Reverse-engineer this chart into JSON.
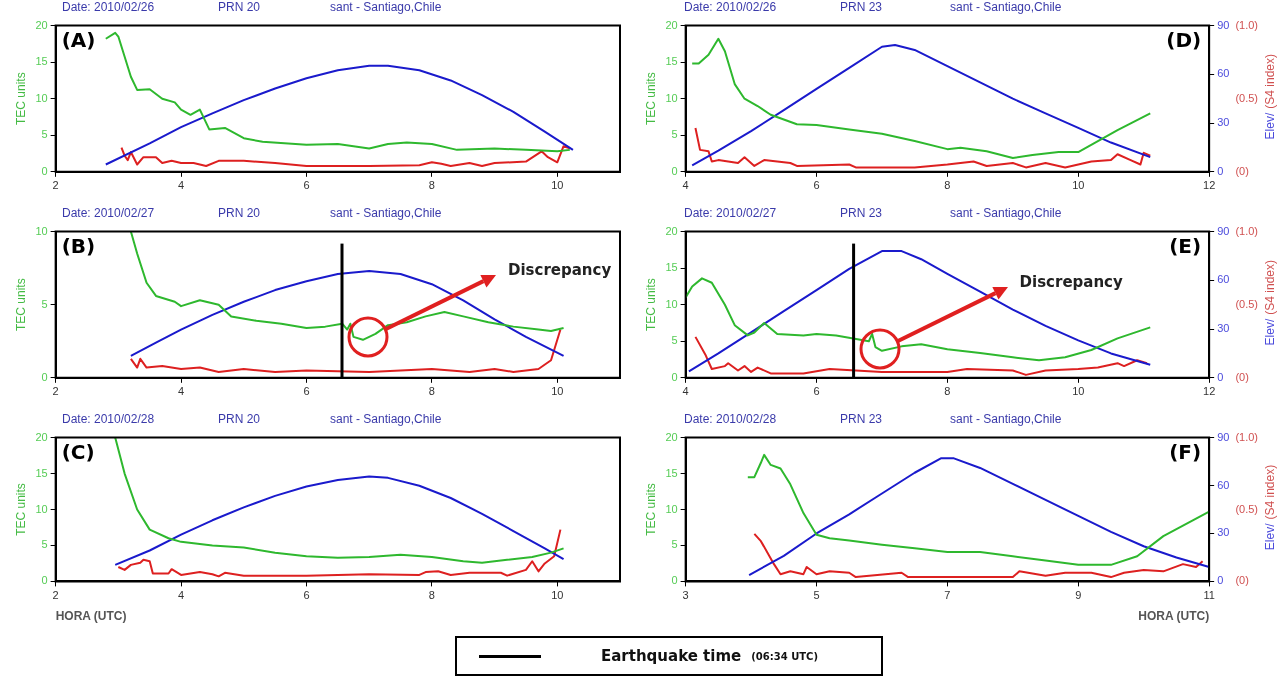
{
  "chart_data": [
    {
      "type": "line",
      "title": "Date: 2010/02/26",
      "subtitle": "PRN 20",
      "annotations": [
        "sant - Santiago,Chile",
        "(A)"
      ],
      "ylabel": "TEC units",
      "xlim": [
        2,
        11
      ],
      "xticks": [
        2,
        4,
        6,
        8,
        10
      ],
      "ylim": [
        0,
        20
      ],
      "yticks": [
        0,
        5,
        10,
        15,
        20
      ],
      "series": [
        {
          "color": "#2eb82e",
          "x": [
            2.8,
            2.95,
            3.0,
            3.2,
            3.3,
            3.5,
            3.7,
            3.9,
            4.0,
            4.15,
            4.3,
            4.45,
            4.7,
            5.0,
            5.3,
            6.0,
            6.5,
            7.0,
            7.3,
            7.6,
            8.0,
            8.4,
            9.0,
            9.5,
            10.0,
            10.2
          ],
          "values": [
            18.2,
            19,
            18.5,
            13,
            11.2,
            11.3,
            10,
            9.5,
            8.5,
            7.8,
            8.5,
            5.8,
            6,
            4.6,
            4.1,
            3.7,
            3.8,
            3.2,
            3.8,
            4,
            3.8,
            3,
            3.2,
            3,
            2.8,
            3
          ]
        },
        {
          "color": "#1a1acc",
          "x": [
            2.8,
            3.5,
            4,
            4.5,
            5,
            5.5,
            6,
            6.5,
            7,
            7.3,
            7.8,
            8.3,
            8.8,
            9.3,
            9.8,
            10.25
          ],
          "values": [
            1,
            3.9,
            6.1,
            8,
            9.8,
            11.4,
            12.8,
            13.9,
            14.5,
            14.5,
            13.9,
            12.5,
            10.5,
            8.2,
            5.5,
            3
          ]
        },
        {
          "color": "#dd2020",
          "x": [
            3.05,
            3.1,
            3.15,
            3.2,
            3.3,
            3.4,
            3.6,
            3.7,
            3.85,
            4.0,
            4.2,
            4.4,
            4.6,
            5.0,
            5.5,
            6.0,
            7.0,
            7.8,
            8.0,
            8.15,
            8.3,
            8.6,
            8.8,
            9.0,
            9.5,
            9.75,
            9.85,
            10.0,
            10.1,
            10.2
          ],
          "values": [
            3.3,
            2.2,
            1.6,
            2.7,
            1.0,
            2,
            2,
            1.2,
            1.5,
            1.2,
            1.2,
            0.8,
            1.5,
            1.5,
            1.2,
            0.8,
            0.8,
            0.9,
            1.3,
            1.1,
            0.8,
            1.2,
            0.8,
            1.2,
            1.4,
            2.8,
            2.0,
            1.3,
            3.5,
            3.2
          ]
        }
      ]
    },
    {
      "type": "line",
      "title": "Date: 2010/02/27",
      "subtitle": "PRN 20",
      "annotations": [
        "sant - Santiago,Chile",
        "(B)",
        "Discrepancy",
        "(06:34 UTC)"
      ],
      "ylabel": "TEC units",
      "xlim": [
        2,
        11
      ],
      "xticks": [
        2,
        4,
        6,
        8,
        10
      ],
      "ylim": [
        0,
        10
      ],
      "yticks": [
        0,
        5,
        10
      ],
      "ref_lines": [
        {
          "axis": "x",
          "value": 6.5667,
          "label": "Earthquake time",
          "color": "#000000"
        }
      ],
      "series": [
        {
          "color": "#2eb82e",
          "x": [
            3.2,
            3.3,
            3.45,
            3.6,
            3.9,
            4.0,
            4.3,
            4.6,
            4.8,
            5.2,
            5.6,
            6.0,
            6.3,
            6.57,
            6.65,
            6.7,
            6.75,
            6.9,
            7.1,
            7.3,
            7.6,
            7.9,
            8.2,
            8.5,
            8.9,
            9.3,
            9.7,
            9.9,
            10.1
          ],
          "values": [
            10,
            8.5,
            6.5,
            5.6,
            5.2,
            4.9,
            5.3,
            5.0,
            4.2,
            3.9,
            3.7,
            3.4,
            3.5,
            3.7,
            3.3,
            3.7,
            2.8,
            2.6,
            3.0,
            3.6,
            3.8,
            4.2,
            4.5,
            4.2,
            3.8,
            3.5,
            3.3,
            3.2,
            3.4
          ]
        },
        {
          "color": "#1a1acc",
          "x": [
            3.2,
            3.6,
            4,
            4.5,
            5,
            5.5,
            6,
            6.5,
            7,
            7.5,
            8,
            8.5,
            9,
            9.5,
            10.1
          ],
          "values": [
            1.5,
            2.4,
            3.3,
            4.3,
            5.2,
            6.0,
            6.6,
            7.1,
            7.3,
            7.1,
            6.4,
            5.3,
            4.0,
            2.8,
            1.5
          ]
        },
        {
          "color": "#dd2020",
          "x": [
            3.2,
            3.3,
            3.35,
            3.45,
            3.7,
            4,
            4.3,
            4.6,
            5,
            5.5,
            6,
            7,
            8,
            8.6,
            9,
            9.3,
            9.7,
            9.9,
            10.05
          ],
          "values": [
            1.3,
            0.7,
            1.3,
            0.7,
            0.8,
            0.6,
            0.7,
            0.4,
            0.6,
            0.4,
            0.5,
            0.4,
            0.6,
            0.4,
            0.6,
            0.4,
            0.6,
            1.2,
            3.3
          ]
        }
      ]
    },
    {
      "type": "line",
      "title": "Date: 2010/02/28",
      "subtitle": "PRN 20",
      "annotations": [
        "sant - Santiago,Chile",
        "(C)"
      ],
      "ylabel": "TEC units",
      "xlabel": "HORA (UTC)",
      "xlim": [
        2,
        11
      ],
      "xticks": [
        2,
        4,
        6,
        8,
        10
      ],
      "ylim": [
        0,
        20
      ],
      "yticks": [
        0,
        5,
        10,
        15,
        20
      ],
      "series": [
        {
          "color": "#2eb82e",
          "x": [
            2.95,
            3.1,
            3.3,
            3.5,
            3.8,
            4.0,
            4.5,
            5.0,
            5.5,
            6.0,
            6.5,
            7.0,
            7.5,
            8.0,
            8.5,
            8.8,
            9.2,
            9.6,
            9.9,
            10.1
          ],
          "values": [
            20,
            15,
            10,
            7.2,
            6,
            5.5,
            5.0,
            4.7,
            4.0,
            3.5,
            3.3,
            3.4,
            3.7,
            3.4,
            2.8,
            2.6,
            3.0,
            3.4,
            4.0,
            4.6
          ]
        },
        {
          "color": "#1a1acc",
          "x": [
            2.95,
            3.5,
            4,
            4.5,
            5,
            5.5,
            6,
            6.5,
            7,
            7.3,
            7.8,
            8.3,
            8.8,
            9.3,
            9.8,
            10.1
          ],
          "values": [
            2.3,
            4.3,
            6.5,
            8.5,
            10.3,
            11.9,
            13.2,
            14.1,
            14.6,
            14.4,
            13.3,
            11.6,
            9.4,
            7.0,
            4.6,
            3.1
          ]
        },
        {
          "color": "#dd2020",
          "x": [
            3.0,
            3.1,
            3.2,
            3.35,
            3.4,
            3.5,
            3.55,
            3.8,
            3.85,
            4.0,
            4.3,
            4.5,
            4.6,
            4.7,
            5.0,
            6.0,
            7.0,
            7.8,
            7.9,
            8.1,
            8.3,
            8.6,
            9.1,
            9.2,
            9.5,
            9.6,
            9.7,
            9.8,
            9.95,
            10.05
          ],
          "values": [
            2.0,
            1.6,
            2.3,
            2.6,
            3.0,
            2.8,
            1.1,
            1.1,
            1.7,
            0.9,
            1.3,
            1.0,
            0.7,
            1.2,
            0.8,
            0.8,
            1.0,
            0.9,
            1.3,
            1.4,
            0.9,
            1.2,
            1.2,
            0.8,
            1.6,
            2.8,
            1.4,
            2.5,
            3.5,
            7.2
          ]
        }
      ]
    },
    {
      "type": "line",
      "title": "Date: 2010/02/26",
      "subtitle": "PRN 23",
      "annotations": [
        "sant - Santiago,Chile",
        "(D)"
      ],
      "ylabel": "TEC units",
      "y2label": "Elev/",
      "y3label": "(S4 index)",
      "xlim": [
        4,
        12
      ],
      "xticks": [
        4,
        6,
        8,
        10,
        12
      ],
      "ylim": [
        0,
        20
      ],
      "yticks": [
        0,
        5,
        10,
        15,
        20
      ],
      "y2lim": [
        0,
        90
      ],
      "y2ticks": [
        0,
        30,
        60,
        90
      ],
      "y3lim": [
        0,
        1
      ],
      "y3ticks": [
        {
          "value": 0,
          "label": "(0)"
        },
        {
          "value": 0.5,
          "label": "(0.5)"
        },
        {
          "value": 1,
          "label": "(1.0)"
        }
      ],
      "series": [
        {
          "color": "#2eb82e",
          "x": [
            4.1,
            4.2,
            4.35,
            4.5,
            4.6,
            4.75,
            4.9,
            5.1,
            5.3,
            5.7,
            6.0,
            6.5,
            7.0,
            7.5,
            8.0,
            8.2,
            8.6,
            9.0,
            9.3,
            9.7,
            10.0,
            10.3,
            10.6,
            11.1
          ],
          "values": [
            14.8,
            14.8,
            16,
            18.2,
            16.5,
            12,
            10,
            9,
            7.8,
            6.5,
            6.4,
            5.8,
            5.2,
            4.2,
            3.1,
            3.3,
            2.8,
            1.9,
            2.3,
            2.7,
            2.7,
            4.2,
            5.7,
            8.0
          ]
        },
        {
          "color": "#1a1acc",
          "axis": "y2",
          "x": [
            4.1,
            4.5,
            5,
            5.5,
            6,
            6.5,
            7.0,
            7.2,
            7.5,
            8,
            8.5,
            9,
            9.5,
            10,
            10.5,
            11.1
          ],
          "values": [
            4,
            13,
            25,
            38,
            51,
            64,
            77,
            78,
            75,
            65,
            55,
            45,
            36,
            27,
            18,
            9
          ]
        },
        {
          "color": "#dd2020",
          "axis": "y3",
          "x": [
            4.15,
            4.22,
            4.35,
            4.4,
            4.5,
            4.8,
            4.9,
            5.05,
            5.2,
            5.6,
            5.7,
            6.5,
            6.6,
            7.5,
            8.0,
            8.4,
            8.6,
            9.0,
            9.2,
            9.5,
            9.8,
            10.2,
            10.5,
            10.6,
            10.8,
            10.95,
            11.0,
            11.1
          ],
          "values": [
            0.3,
            0.15,
            0.14,
            0.07,
            0.08,
            0.06,
            0.1,
            0.04,
            0.08,
            0.06,
            0.04,
            0.05,
            0.03,
            0.03,
            0.05,
            0.07,
            0.04,
            0.06,
            0.03,
            0.06,
            0.03,
            0.07,
            0.08,
            0.12,
            0.08,
            0.05,
            0.13,
            0.11
          ]
        }
      ]
    },
    {
      "type": "line",
      "title": "Date: 2010/02/27",
      "subtitle": "PRN 23",
      "annotations": [
        "sant - Santiago,Chile",
        "(E)",
        "Discrepancy"
      ],
      "ylabel": "TEC units",
      "y2label": "Elev/",
      "y3label": "(S4 index)",
      "xlim": [
        4,
        12
      ],
      "xticks": [
        4,
        6,
        8,
        10,
        12
      ],
      "ylim": [
        0,
        20
      ],
      "yticks": [
        0,
        5,
        10,
        15,
        20
      ],
      "y2lim": [
        0,
        90
      ],
      "y2ticks": [
        0,
        30,
        60,
        90
      ],
      "y3lim": [
        0,
        1
      ],
      "y3ticks": [
        {
          "value": 0,
          "label": "(0)"
        },
        {
          "value": 0.5,
          "label": "(0.5)"
        },
        {
          "value": 1,
          "label": "(1.0)"
        }
      ],
      "ref_lines": [
        {
          "axis": "x",
          "value": 6.5667,
          "label": null,
          "color": "#000000"
        }
      ],
      "series": [
        {
          "color": "#2eb82e",
          "x": [
            4.0,
            4.1,
            4.25,
            4.4,
            4.6,
            4.75,
            4.95,
            5.05,
            5.2,
            5.4,
            5.8,
            6.0,
            6.3,
            6.8,
            6.85,
            6.9,
            7.0,
            7.3,
            7.6,
            8.0,
            8.5,
            9.0,
            9.4,
            9.8,
            10.2,
            10.6,
            11.1
          ],
          "values": [
            11,
            12.5,
            13.6,
            13,
            10,
            7.2,
            5.8,
            6.2,
            7.5,
            6,
            5.8,
            6,
            5.8,
            5.0,
            6,
            4.2,
            3.7,
            4.3,
            4.6,
            3.9,
            3.4,
            2.8,
            2.4,
            2.8,
            3.8,
            5.4,
            6.9
          ]
        },
        {
          "color": "#1a1acc",
          "axis": "y2",
          "x": [
            4.05,
            4.5,
            5,
            5.5,
            6,
            6.5,
            7.0,
            7.3,
            7.6,
            8,
            8.5,
            9,
            9.5,
            10,
            10.5,
            11.1
          ],
          "values": [
            4,
            15,
            28,
            41,
            54,
            67,
            78,
            78,
            73,
            64,
            53,
            42,
            32,
            23,
            15,
            8
          ]
        },
        {
          "color": "#dd2020",
          "axis": "y3",
          "x": [
            4.15,
            4.3,
            4.4,
            4.6,
            4.65,
            4.8,
            4.9,
            5.0,
            5.1,
            5.3,
            5.8,
            6.2,
            7.0,
            8.0,
            8.3,
            9.0,
            9.2,
            9.5,
            10.0,
            10.3,
            10.6,
            10.7,
            10.9,
            11.05
          ],
          "values": [
            0.28,
            0.16,
            0.06,
            0.08,
            0.1,
            0.05,
            0.08,
            0.04,
            0.07,
            0.03,
            0.03,
            0.06,
            0.04,
            0.04,
            0.06,
            0.05,
            0.02,
            0.05,
            0.06,
            0.07,
            0.1,
            0.08,
            0.12,
            0.1
          ]
        }
      ]
    },
    {
      "type": "line",
      "title": "Date: 2010/02/28",
      "subtitle": "PRN 23",
      "annotations": [
        "sant - Santiago,Chile",
        "(F)"
      ],
      "ylabel": "TEC units",
      "y2label": "Elev/",
      "y3label": "(S4 index)",
      "xlabel": "HORA (UTC)",
      "xlim": [
        3,
        11
      ],
      "xticks": [
        3,
        5,
        7,
        9,
        11
      ],
      "ylim": [
        0,
        20
      ],
      "yticks": [
        0,
        5,
        10,
        15,
        20
      ],
      "y2lim": [
        0,
        90
      ],
      "y2ticks": [
        0,
        30,
        60,
        90
      ],
      "y3lim": [
        0,
        1
      ],
      "y3ticks": [
        {
          "value": 0,
          "label": "(0)"
        },
        {
          "value": 0.5,
          "label": "(0.5)"
        },
        {
          "value": 1,
          "label": "(1.0)"
        }
      ],
      "series": [
        {
          "color": "#2eb82e",
          "x": [
            3.95,
            4.05,
            4.15,
            4.2,
            4.3,
            4.45,
            4.6,
            4.8,
            5.0,
            5.2,
            5.5,
            6,
            6.5,
            7,
            7.5,
            8,
            8.5,
            9.0,
            9.5,
            9.9,
            10.3,
            11
          ],
          "values": [
            14.5,
            14.5,
            16.5,
            17.6,
            16.2,
            15.7,
            13.5,
            9.5,
            6.5,
            6,
            5.7,
            5.1,
            4.6,
            4.1,
            4.1,
            3.5,
            2.9,
            2.3,
            2.3,
            3.5,
            6.3,
            9.7
          ]
        },
        {
          "color": "#1a1acc",
          "axis": "y2",
          "x": [
            3.97,
            4.5,
            5,
            5.5,
            6,
            6.5,
            6.9,
            7.1,
            7.5,
            8,
            8.5,
            9,
            9.5,
            10,
            10.5,
            11
          ],
          "values": [
            4,
            16,
            30,
            42,
            55,
            68,
            77,
            77,
            71,
            61,
            51,
            41,
            31,
            22,
            15,
            9
          ]
        },
        {
          "color": "#dd2020",
          "axis": "y3",
          "x": [
            4.05,
            4.15,
            4.35,
            4.45,
            4.6,
            4.8,
            4.85,
            5.0,
            5.2,
            5.5,
            5.6,
            6.3,
            6.4,
            8.0,
            8.1,
            8.5,
            8.8,
            9.2,
            9.5,
            9.7,
            10.0,
            10.3,
            10.6,
            10.8,
            10.9
          ],
          "values": [
            0.33,
            0.28,
            0.12,
            0.05,
            0.07,
            0.05,
            0.1,
            0.05,
            0.07,
            0.06,
            0.03,
            0.06,
            0.03,
            0.03,
            0.07,
            0.04,
            0.06,
            0.06,
            0.03,
            0.06,
            0.08,
            0.07,
            0.12,
            0.1,
            0.14
          ]
        }
      ]
    }
  ]
}
